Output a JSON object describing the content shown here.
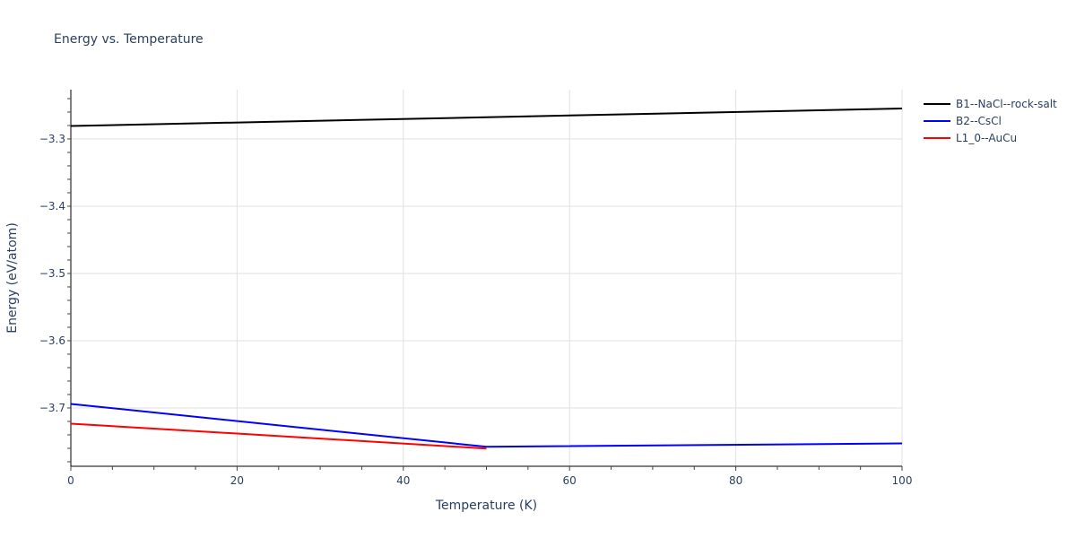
{
  "chart_data": {
    "type": "line",
    "title": "Energy vs. Temperature",
    "xlabel": "Temperature (K)",
    "ylabel": "Energy (eV/atom)",
    "xlim": [
      0,
      100
    ],
    "ylim": [
      -3.7867,
      -3.2267
    ],
    "xticks": [
      0,
      20,
      40,
      60,
      80,
      100
    ],
    "yticks": [
      -3.7,
      -3.6,
      -3.5,
      -3.4,
      -3.3
    ],
    "ytick_labels": [
      "−3.7",
      "−3.6",
      "−3.5",
      "−3.4",
      "−3.3"
    ],
    "grid": true,
    "legend_position": "right",
    "series": [
      {
        "name": "B1--NaCl--rock-salt",
        "color": "#000000",
        "x": [
          0,
          50,
          100
        ],
        "y": [
          -3.2807,
          -3.2677,
          -3.2547
        ]
      },
      {
        "name": "B2--CsCl",
        "color": "#0000ff",
        "x": [
          0,
          50,
          100
        ],
        "y": [
          -3.694,
          -3.7577,
          -3.7527
        ]
      },
      {
        "name": "L1_0--AuCu",
        "color": "#ff0000",
        "x": [
          0,
          50
        ],
        "y": [
          -3.7233,
          -3.7603
        ]
      }
    ]
  }
}
